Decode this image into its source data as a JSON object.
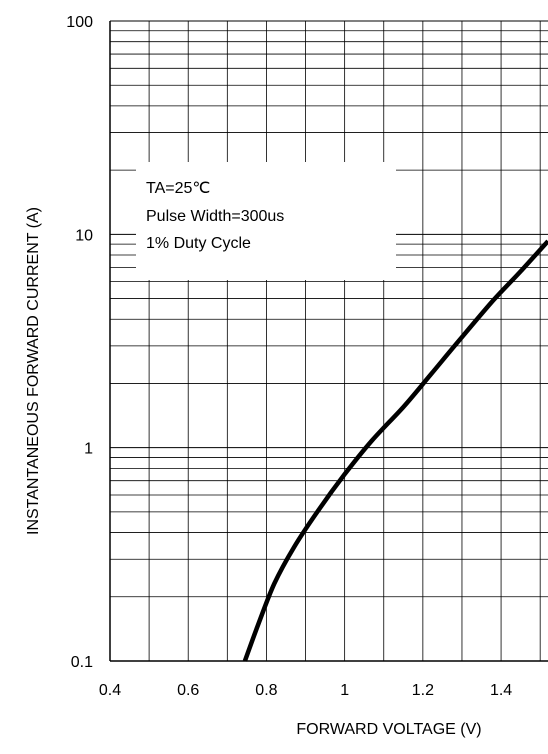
{
  "chart_data": {
    "type": "line",
    "xlabel": "FORWARD VOLTAGE (V)",
    "ylabel": "INSTANTANEOUS FORWARD CURRENT (A)",
    "xlim": [
      0.4,
      1.52
    ],
    "ylim": [
      0.1,
      100
    ],
    "yscale": "log",
    "grid": true,
    "x_ticks": [
      0.4,
      0.6,
      0.8,
      1,
      1.2,
      1.4
    ],
    "x_tick_labels": [
      "0.4",
      "0.6",
      "0.8",
      "1",
      "1.2",
      "1.4"
    ],
    "y_ticks": [
      0.1,
      1,
      10,
      100
    ],
    "y_tick_labels": [
      "0.1",
      "1",
      "10",
      "100"
    ],
    "annotations": [
      "TA=25℃",
      "Pulse Width=300us",
      "1% Duty Cycle"
    ],
    "series": [
      {
        "color": "#000000",
        "x": [
          0.745,
          0.78,
          0.82,
          0.87,
          0.93,
          1.0,
          1.07,
          1.15,
          1.22,
          1.3,
          1.38,
          1.45,
          1.52
        ],
        "y": [
          0.1,
          0.15,
          0.23,
          0.34,
          0.5,
          0.75,
          1.08,
          1.55,
          2.2,
          3.3,
          4.9,
          6.7,
          9.3
        ]
      }
    ]
  }
}
